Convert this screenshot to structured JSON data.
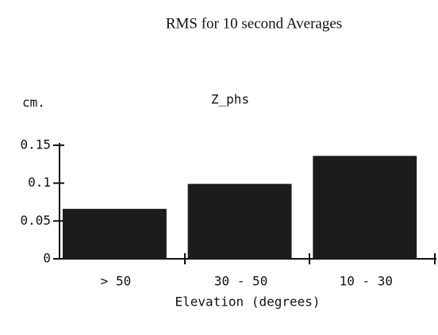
{
  "chart_data": {
    "type": "bar",
    "title": "RMS for 10 second Averages",
    "subtitle": "Z_phs",
    "y_label": "cm.",
    "x_label": "Elevation (degrees)",
    "categories": [
      "> 50",
      "30 - 50",
      "10 - 30"
    ],
    "values": [
      0.066,
      0.099,
      0.136
    ],
    "color": "#1c1c1c",
    "ylim": [
      0,
      0.15
    ],
    "yticks": [
      0,
      0.05,
      0.1,
      0.15
    ],
    "grid": false
  }
}
